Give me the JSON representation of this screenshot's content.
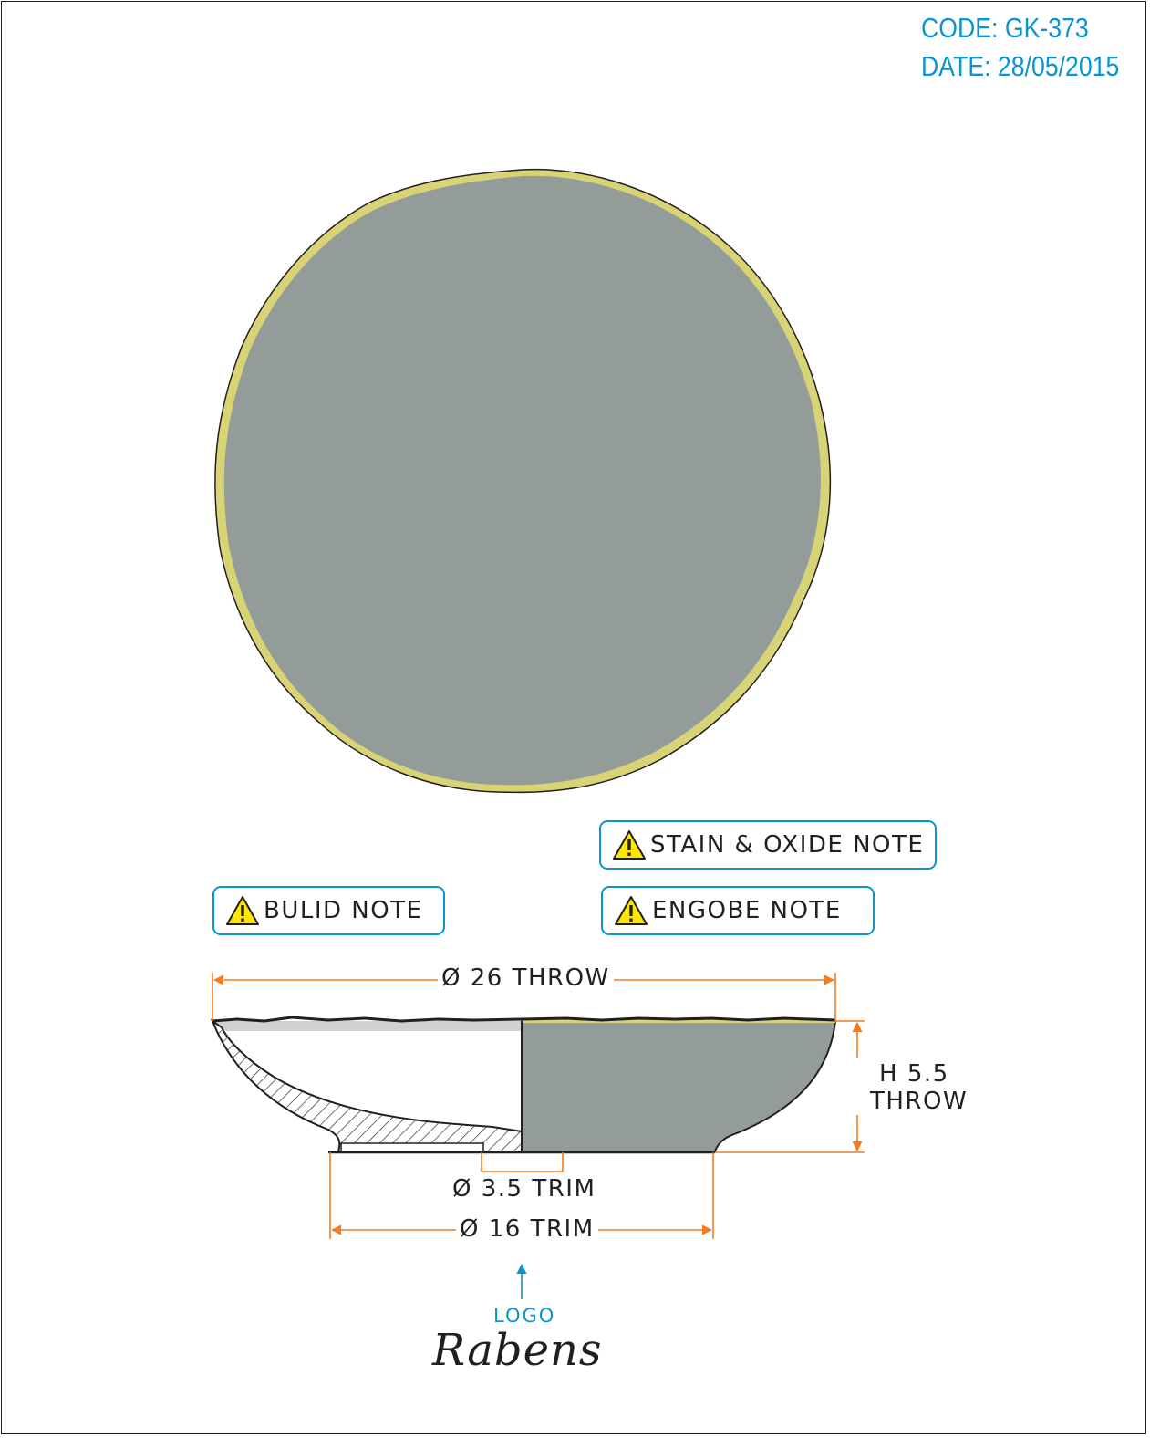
{
  "header": {
    "code": "CODE: GK-373",
    "date": "DATE: 28/05/2015"
  },
  "colors": {
    "accent": "#0a95d1",
    "glaze": "#939c98",
    "rim": "#d8d374",
    "dimension": "#f47b20",
    "line": "#231f20"
  },
  "notes": {
    "stain": "STAIN & OXIDE NOTE",
    "build": "BULID NOTE",
    "engobe": "ENGOBE NOTE",
    "icon": "warning-icon"
  },
  "dimensions": {
    "throw_diameter": "Ø 26 THROW",
    "height_line1": "H 5.5",
    "height_line2": "THROW",
    "foot_inner": "Ø 3.5 TRIM",
    "foot_outer": "Ø 16 TRIM"
  },
  "logo": {
    "label": "LOGO",
    "brand": "Rabens"
  }
}
